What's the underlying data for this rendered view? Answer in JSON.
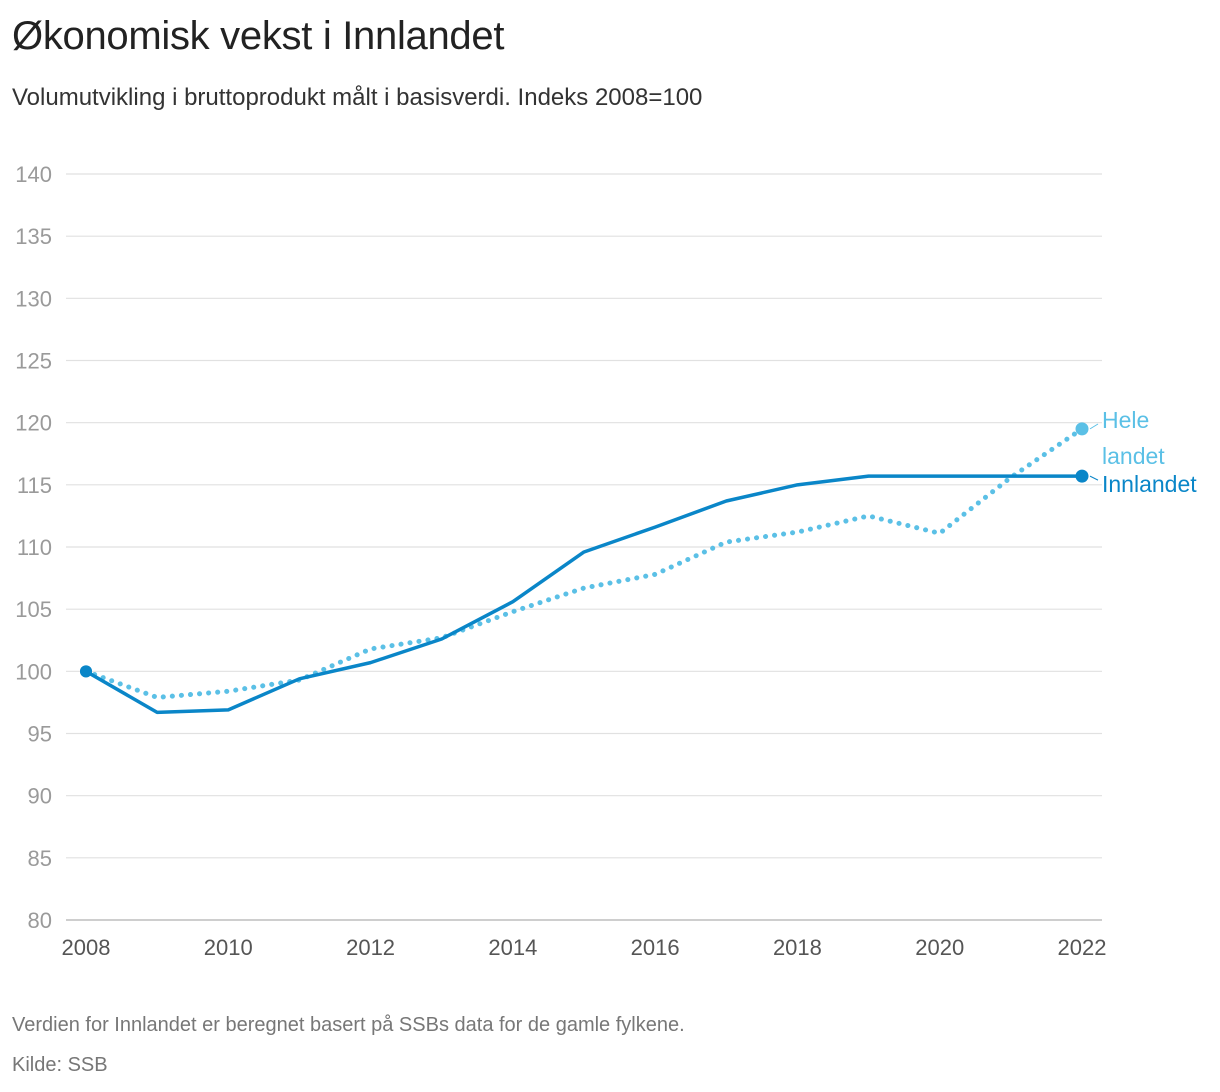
{
  "header": {
    "title": "Økonomisk vekst i Innlandet",
    "subtitle": "Volumutvikling i bruttoprodukt målt i basisverdi. Indeks 2008=100"
  },
  "footer": {
    "note": "Verdien for Innlandet er beregnet basert på SSBs data for de gamle fylkene.",
    "source": "Kilde: SSB"
  },
  "chart_data": {
    "type": "line",
    "x": [
      2008,
      2009,
      2010,
      2011,
      2012,
      2013,
      2014,
      2015,
      2016,
      2017,
      2018,
      2019,
      2020,
      2021,
      2022
    ],
    "xlim": [
      2008,
      2022
    ],
    "ylim": [
      80,
      140
    ],
    "yticks": [
      80,
      85,
      90,
      95,
      100,
      105,
      110,
      115,
      120,
      125,
      130,
      135,
      140
    ],
    "xticks": [
      2008,
      2010,
      2012,
      2014,
      2016,
      2018,
      2020,
      2022
    ],
    "grid": true,
    "series": [
      {
        "name": "Hele landet",
        "name_lines": [
          "Hele",
          "landet"
        ],
        "style": "dotted",
        "color": "#5bc0e6",
        "values": [
          100,
          97.9,
          98.4,
          99.3,
          101.8,
          102.7,
          104.8,
          106.7,
          107.8,
          110.4,
          111.2,
          112.5,
          111.1,
          115.6,
          119.5
        ]
      },
      {
        "name": "Innlandet",
        "name_lines": [
          "Innlandet"
        ],
        "style": "solid",
        "color": "#0a86c8",
        "values": [
          100,
          96.7,
          96.9,
          99.4,
          100.7,
          102.6,
          105.6,
          109.6,
          111.6,
          113.7,
          115.0,
          115.7,
          115.7,
          115.7,
          115.7
        ]
      }
    ]
  }
}
